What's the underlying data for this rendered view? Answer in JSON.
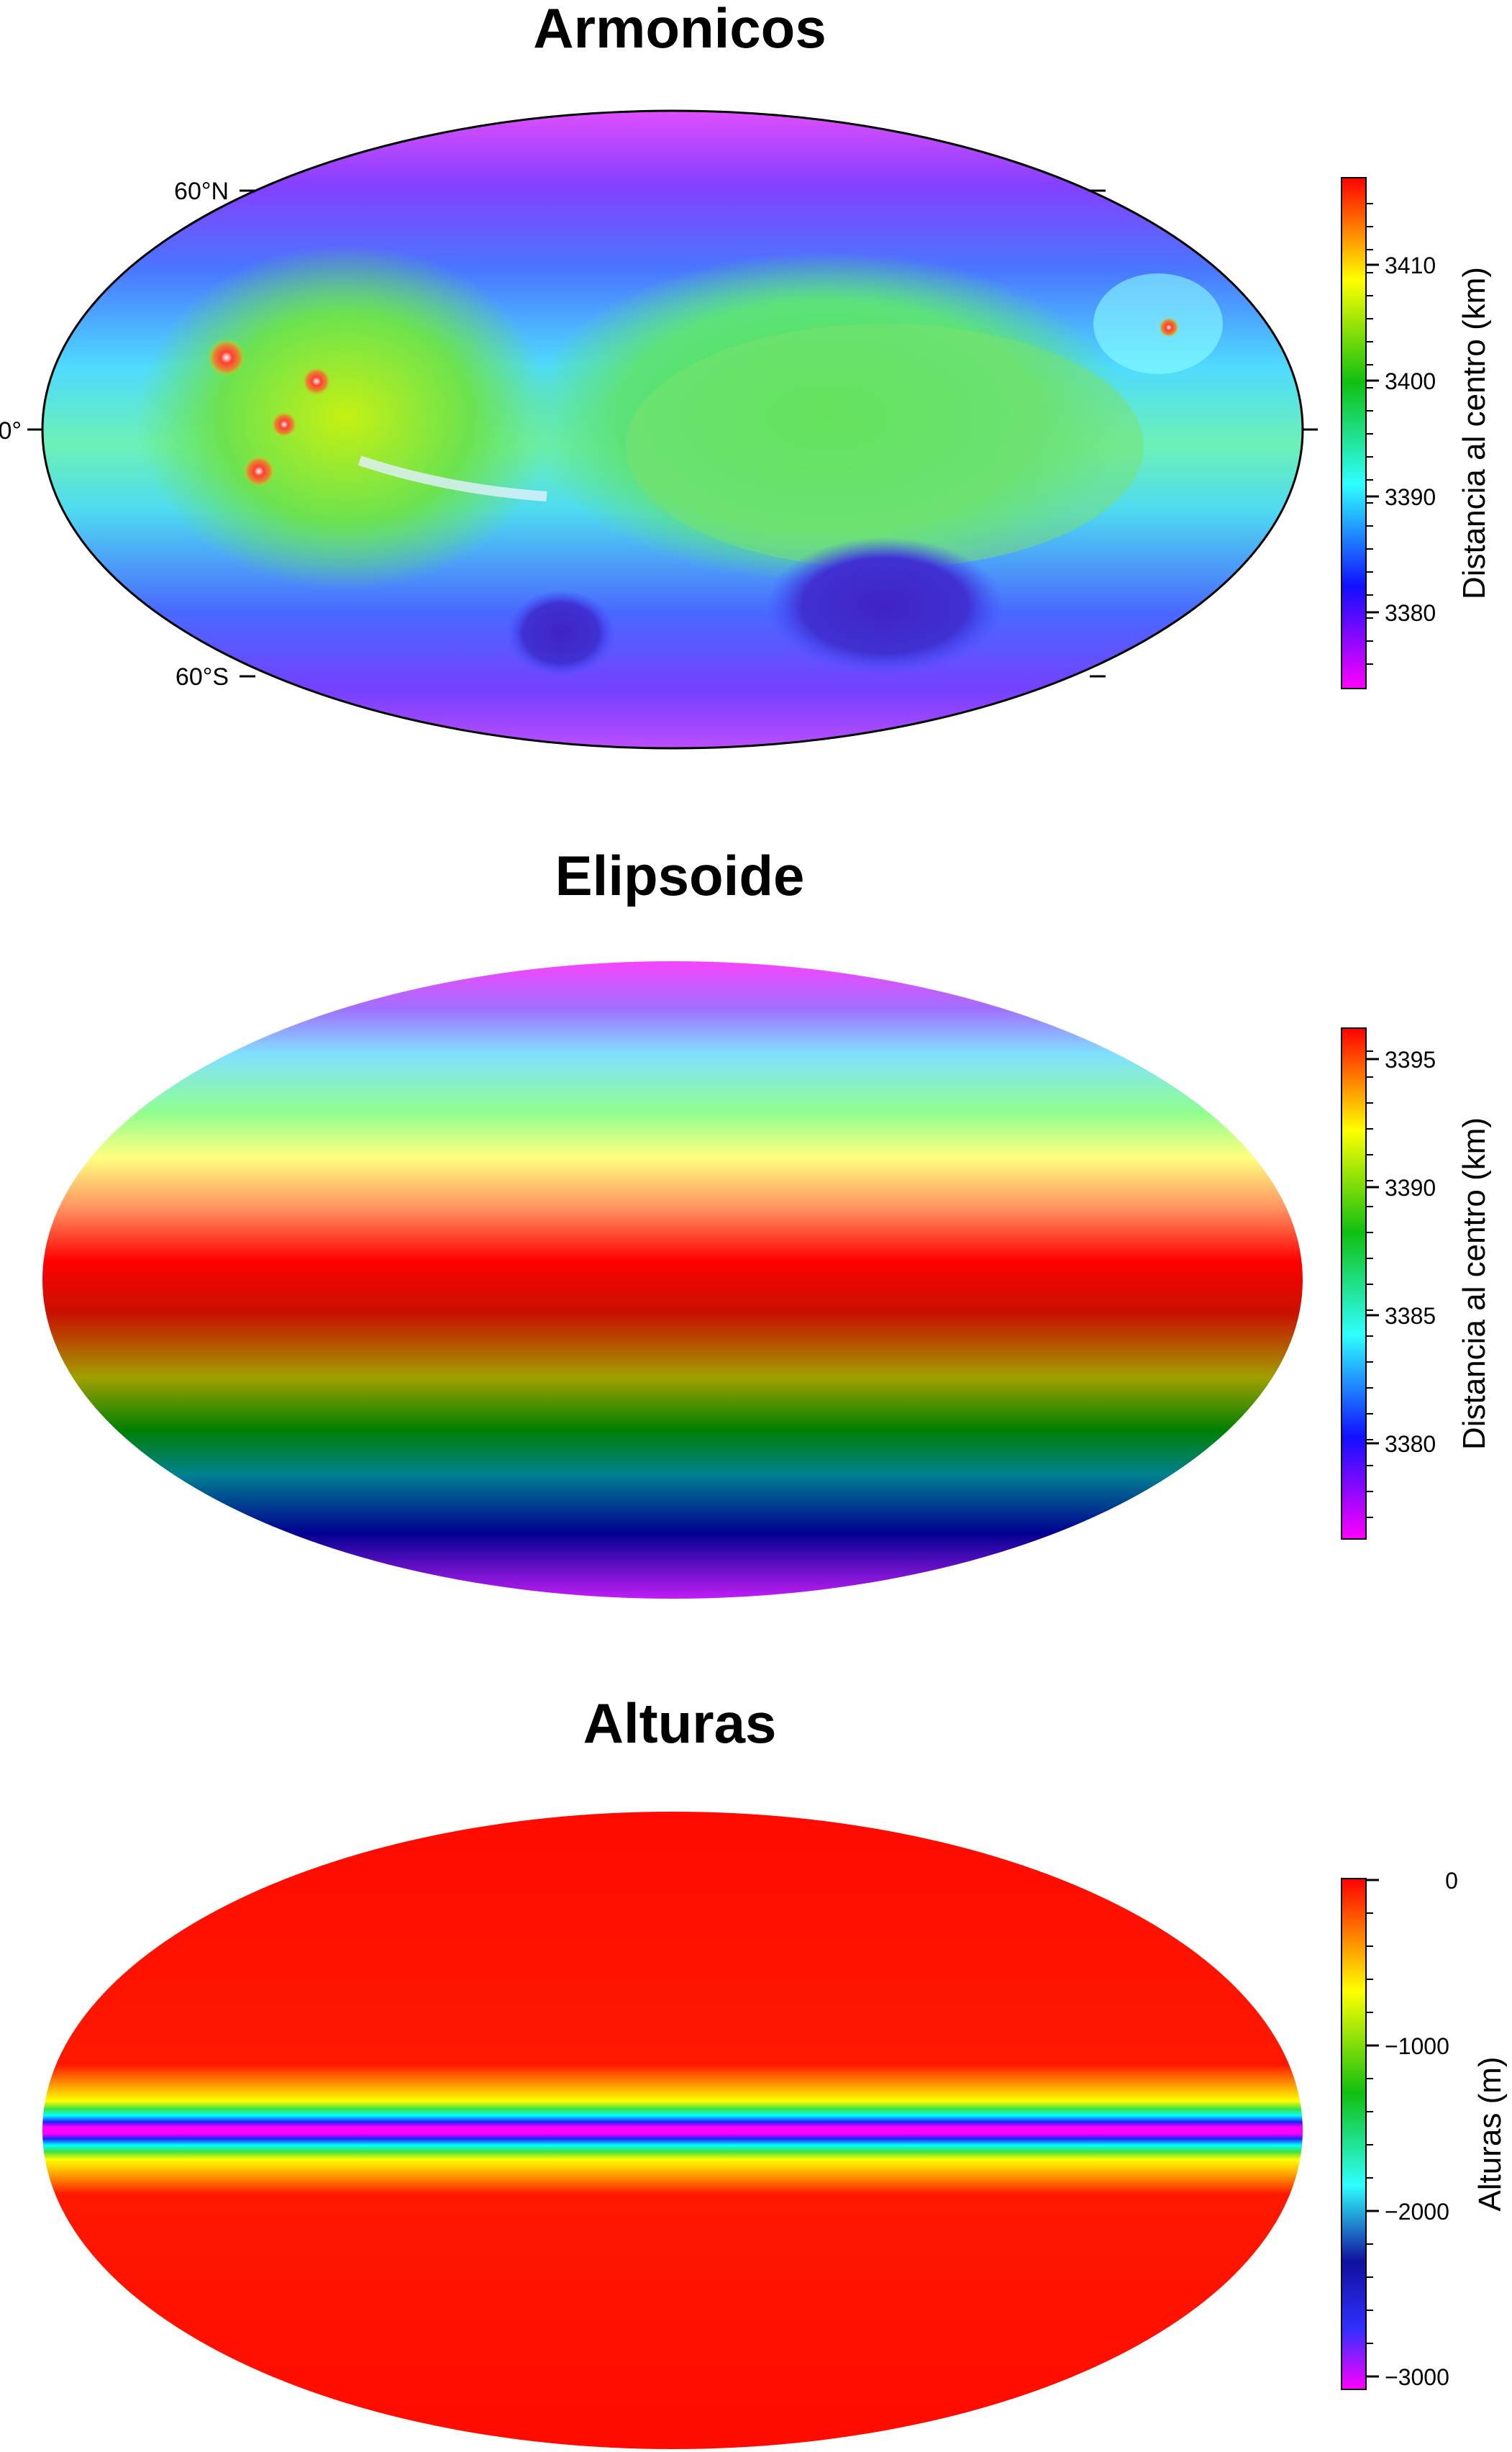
{
  "panels": [
    {
      "title": "Armonicos",
      "colorbar": {
        "label": "Distancia al centro (km)",
        "ticks": [
          "3410",
          "3400",
          "3390",
          "3380"
        ],
        "range": [
          3373,
          3417
        ]
      },
      "lat_labels": [
        "60°N",
        "0°",
        "60°S"
      ]
    },
    {
      "title": "Elipsoide",
      "colorbar": {
        "label": "Distancia al centro (km)",
        "ticks": [
          "3395",
          "3390",
          "3385",
          "3380"
        ],
        "range": [
          3376.5,
          3396
        ]
      }
    },
    {
      "title": "Alturas",
      "colorbar": {
        "label": "Alturas (m)",
        "ticks": [
          "0",
          "−1000",
          "−2000",
          "−3000"
        ],
        "range": [
          -3100,
          0
        ]
      }
    }
  ],
  "colors": {
    "magenta": "#ff00ff",
    "blue": "#1010ff",
    "cyan": "#2fffff",
    "green": "#10c010",
    "yellow": "#ffff00",
    "red": "#ff0000"
  }
}
